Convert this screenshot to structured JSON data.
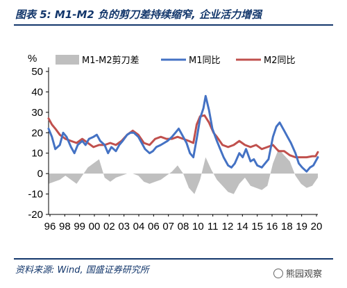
{
  "header": {
    "title": "图表 5:  M1-M2 负的剪刀差持续缩窄, 企业活力增强"
  },
  "footer": {
    "source": "资料来源: Wind, 国盛证券研究所",
    "watermark": "熊园观察",
    "watermark_icon": "wechat-icon"
  },
  "colors": {
    "gap": "#bfbfbf",
    "m1": "#4472c4",
    "m2": "#c0504d",
    "accent": "#12366b"
  },
  "chart_data": {
    "type": "line",
    "ylabel": "%",
    "ylim": [
      -20,
      50
    ],
    "yticks": [
      50,
      40,
      30,
      20,
      10,
      0,
      -10,
      -20
    ],
    "xlim": [
      1996.0,
      2020.0
    ],
    "xtick_labels": [
      "96",
      "98",
      "99",
      "00",
      "02",
      "03",
      "04",
      "06",
      "07",
      "08",
      "10",
      "11",
      "12",
      "14",
      "15",
      "16",
      "18",
      "19",
      "20"
    ],
    "legend": [
      "M1-M2剪刀差",
      "M1同比",
      "M2同比"
    ],
    "legend_position": "top",
    "grid": false,
    "series": [
      {
        "name": "M2同比",
        "kind": "line",
        "x": [
          1996.0,
          1996.3,
          1996.6,
          1997.0,
          1997.5,
          1998.0,
          1998.5,
          1999.0,
          1999.5,
          2000.0,
          2000.5,
          2001.0,
          2001.5,
          2002.0,
          2002.5,
          2003.0,
          2003.5,
          2004.0,
          2004.5,
          2005.0,
          2005.5,
          2006.0,
          2006.5,
          2007.0,
          2007.5,
          2008.0,
          2008.5,
          2008.9,
          2009.2,
          2009.5,
          2009.9,
          2010.3,
          2010.7,
          2011.0,
          2011.5,
          2012.0,
          2012.5,
          2013.0,
          2013.5,
          2014.0,
          2014.5,
          2015.0,
          2015.5,
          2016.0,
          2016.5,
          2017.0,
          2017.5,
          2018.0,
          2018.5,
          2019.0,
          2019.5,
          2019.8,
          2020.0
        ],
        "y": [
          27.0,
          24.0,
          22.0,
          19.0,
          17.0,
          16.0,
          15.0,
          17.0,
          15.0,
          13.0,
          14.0,
          14.0,
          15.0,
          14.0,
          16.0,
          19.0,
          21.0,
          19.0,
          15.0,
          14.0,
          17.0,
          18.0,
          17.0,
          17.0,
          18.0,
          17.0,
          16.0,
          15.0,
          24.0,
          28.0,
          28.5,
          25.0,
          20.0,
          18.0,
          14.0,
          13.0,
          14.0,
          16.0,
          14.0,
          13.0,
          14.0,
          12.0,
          13.0,
          14.0,
          11.0,
          11.0,
          9.0,
          8.0,
          8.0,
          8.0,
          8.5,
          8.5,
          10.5
        ]
      },
      {
        "name": "M1同比",
        "kind": "line",
        "x": [
          1996.0,
          1996.3,
          1996.6,
          1997.0,
          1997.3,
          1997.6,
          1998.0,
          1998.3,
          1998.6,
          1999.0,
          1999.3,
          1999.6,
          2000.0,
          2000.3,
          2000.6,
          2001.0,
          2001.3,
          2001.6,
          2002.0,
          2002.3,
          2002.6,
          2003.0,
          2003.3,
          2003.6,
          2004.0,
          2004.3,
          2004.6,
          2005.0,
          2005.3,
          2005.6,
          2006.0,
          2006.3,
          2006.6,
          2007.0,
          2007.3,
          2007.6,
          2008.0,
          2008.3,
          2008.6,
          2008.9,
          2009.2,
          2009.5,
          2009.8,
          2010.0,
          2010.3,
          2010.6,
          2011.0,
          2011.3,
          2011.6,
          2012.0,
          2012.3,
          2012.6,
          2013.0,
          2013.3,
          2013.6,
          2014.0,
          2014.3,
          2014.6,
          2015.0,
          2015.3,
          2015.6,
          2016.0,
          2016.3,
          2016.6,
          2017.0,
          2017.3,
          2017.6,
          2018.0,
          2018.3,
          2018.6,
          2019.0,
          2019.3,
          2019.6,
          2020.0
        ],
        "y": [
          22.0,
          18.0,
          12.0,
          14.0,
          20.0,
          18.0,
          13.0,
          10.0,
          14.0,
          16.0,
          14.0,
          17.0,
          18.0,
          19.0,
          16.0,
          14.0,
          10.0,
          13.0,
          11.0,
          14.0,
          16.0,
          19.0,
          20.0,
          20.0,
          18.0,
          15.0,
          12.0,
          10.0,
          11.0,
          13.0,
          14.0,
          15.0,
          16.0,
          18.0,
          20.0,
          22.0,
          18.0,
          15.0,
          10.0,
          8.0,
          17.0,
          27.0,
          32.0,
          38.0,
          31.0,
          22.0,
          16.0,
          12.0,
          8.0,
          4.0,
          3.0,
          5.0,
          10.0,
          8.0,
          12.0,
          6.0,
          7.0,
          4.0,
          3.0,
          5.0,
          7.0,
          18.0,
          23.0,
          25.0,
          21.0,
          18.0,
          15.0,
          10.0,
          5.0,
          3.0,
          1.0,
          3.0,
          4.0,
          8.0
        ]
      },
      {
        "name": "M1-M2剪刀差",
        "kind": "area",
        "x": [
          1996.0,
          1996.5,
          1997.0,
          1997.5,
          1998.0,
          1998.5,
          1999.0,
          1999.5,
          2000.0,
          2000.5,
          2001.0,
          2001.5,
          2002.0,
          2002.5,
          2003.0,
          2003.5,
          2004.0,
          2004.5,
          2005.0,
          2005.5,
          2006.0,
          2006.5,
          2007.0,
          2007.5,
          2008.0,
          2008.5,
          2009.0,
          2009.5,
          2010.0,
          2010.5,
          2011.0,
          2011.5,
          2012.0,
          2012.5,
          2013.0,
          2013.5,
          2014.0,
          2014.5,
          2015.0,
          2015.5,
          2016.0,
          2016.5,
          2017.0,
          2017.5,
          2018.0,
          2018.5,
          2019.0,
          2019.5,
          2020.0
        ],
        "y": [
          -5.0,
          -4.0,
          -3.0,
          -1.0,
          -3.0,
          -5.0,
          -1.0,
          3.0,
          5.0,
          7.0,
          -2.0,
          -4.0,
          -2.0,
          -1.0,
          0.0,
          0.0,
          -1.0,
          -4.0,
          -5.0,
          -4.0,
          -3.0,
          -1.0,
          1.0,
          4.0,
          0.0,
          -7.0,
          -10.0,
          -3.0,
          8.0,
          2.0,
          -3.0,
          -6.0,
          -9.0,
          -10.0,
          -5.0,
          -2.0,
          -6.0,
          -7.0,
          -8.0,
          -6.0,
          5.0,
          12.0,
          9.0,
          6.0,
          -1.0,
          -5.0,
          -7.0,
          -6.0,
          -2.0
        ]
      }
    ]
  }
}
